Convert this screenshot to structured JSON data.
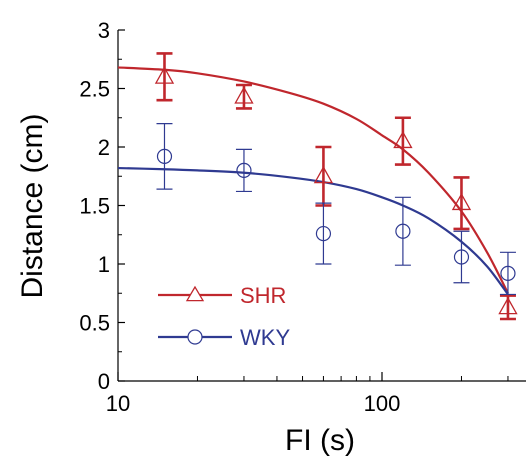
{
  "chart_data": {
    "type": "scatter",
    "xscale": "log",
    "xlabel": "FI (s)",
    "ylabel": "Distance (cm)",
    "xlim": [
      10,
      300
    ],
    "ylim": [
      0,
      3
    ],
    "x_ticks": [
      "10",
      "100"
    ],
    "y_ticks": [
      "0",
      "0.5",
      "1",
      "1.5",
      "2",
      "2.5",
      "3"
    ],
    "grid": false,
    "legend_position": "bottom-left",
    "series": [
      {
        "name": "SHR",
        "color": "#c0272d",
        "marker": "triangle",
        "x": [
          15,
          30,
          60,
          120,
          200,
          300
        ],
        "y": [
          2.6,
          2.43,
          1.75,
          2.05,
          1.52,
          0.63
        ],
        "err": [
          0.2,
          0.1,
          0.25,
          0.2,
          0.22,
          0.1
        ],
        "fit_x": [
          10,
          15,
          20,
          30,
          45,
          60,
          80,
          100,
          120,
          150,
          200,
          250,
          300
        ],
        "fit_y": [
          2.68,
          2.66,
          2.63,
          2.56,
          2.46,
          2.37,
          2.24,
          2.1,
          1.98,
          1.78,
          1.45,
          1.1,
          0.75
        ]
      },
      {
        "name": "WKY",
        "color": "#2f3a91",
        "marker": "circle",
        "x": [
          15,
          30,
          60,
          120,
          200,
          300
        ],
        "y": [
          1.92,
          1.8,
          1.26,
          1.28,
          1.06,
          0.92
        ],
        "err": [
          0.28,
          0.18,
          0.26,
          0.29,
          0.22,
          0.18
        ],
        "fit_x": [
          10,
          15,
          20,
          30,
          45,
          60,
          80,
          100,
          120,
          150,
          200,
          250,
          300
        ],
        "fit_y": [
          1.82,
          1.81,
          1.8,
          1.78,
          1.74,
          1.7,
          1.64,
          1.57,
          1.5,
          1.39,
          1.19,
          0.98,
          0.74
        ]
      }
    ]
  }
}
